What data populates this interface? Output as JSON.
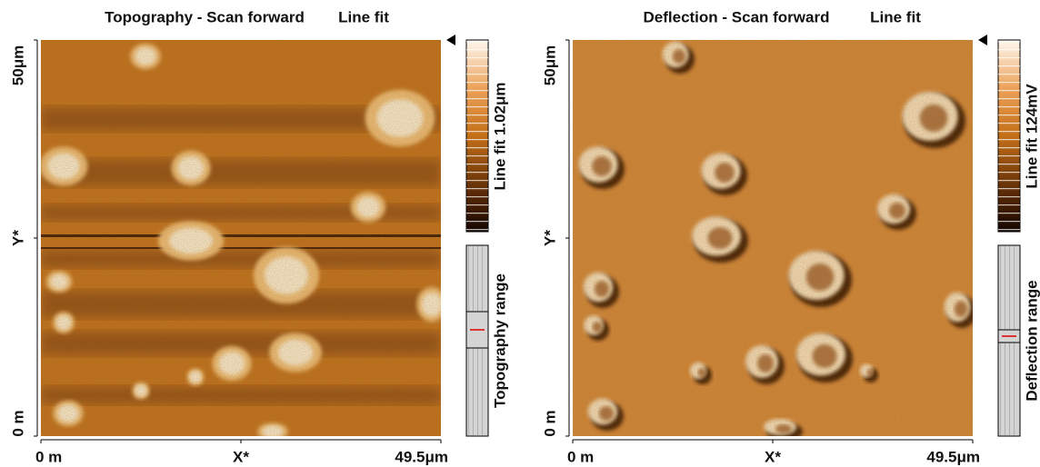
{
  "panels": [
    {
      "title": "Topography - Scan forward",
      "mode": "Line fit",
      "y_axis": {
        "top": "50μm",
        "middle": "Y*",
        "bottom": "0 m"
      },
      "x_axis": {
        "left": "0 m",
        "middle": "X*",
        "right": "49.5μm"
      },
      "colorbar_label": "Line fit 1.02μm",
      "range_label": "Topography range"
    },
    {
      "title": "Deflection - Scan forward",
      "mode": "Line fit",
      "y_axis": {
        "top": "50μm",
        "middle": "Y*",
        "bottom": "0 m"
      },
      "x_axis": {
        "left": "0 m",
        "middle": "X*",
        "right": "49.5μm"
      },
      "colorbar_label": "Line fit 124mV",
      "range_label": "Deflection range"
    }
  ]
}
